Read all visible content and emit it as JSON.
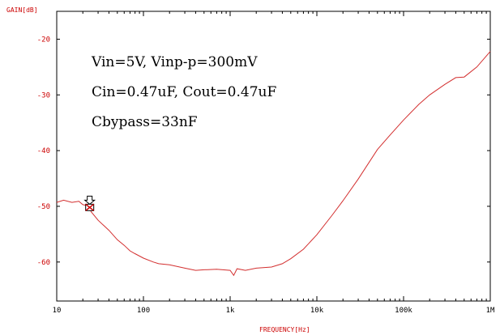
{
  "chart_data": {
    "type": "line",
    "title": "",
    "xlabel": "FREQUENCY[Hz]",
    "ylabel": "GAIN[dB]",
    "x_scale": "log",
    "xlim": [
      10,
      1000000
    ],
    "ylim": [
      -67,
      -15
    ],
    "x_ticks": [
      10,
      100,
      1000,
      10000,
      100000,
      1000000
    ],
    "x_tick_labels": [
      "10",
      "100",
      "1k",
      "10k",
      "100k",
      "1M"
    ],
    "y_ticks": [
      -20,
      -30,
      -40,
      -50,
      -60
    ],
    "y_tick_labels": [
      "-20",
      "-30",
      "-40",
      "-50",
      "-60"
    ],
    "grid": false,
    "series": [
      {
        "color": "#d32f2f",
        "x": [
          10,
          12,
          15,
          18,
          20,
          23,
          25,
          30,
          40,
          50,
          60,
          70,
          80,
          100,
          130,
          150,
          200,
          300,
          400,
          500,
          700,
          1000,
          1100,
          1200,
          1500,
          2000,
          3000,
          4000,
          5000,
          7000,
          10000,
          15000,
          20000,
          30000,
          50000,
          70000,
          100000,
          150000,
          200000,
          300000,
          400000,
          500000,
          700000,
          1000000
        ],
        "values": [
          -49.3,
          -48.9,
          -49.3,
          -49.1,
          -49.7,
          -49.9,
          -51.0,
          -52.5,
          -54.3,
          -56.0,
          -57.0,
          -58.0,
          -58.5,
          -59.3,
          -60.0,
          -60.3,
          -60.5,
          -61.1,
          -61.5,
          -61.4,
          -61.3,
          -61.5,
          -62.4,
          -61.2,
          -61.5,
          -61.1,
          -60.9,
          -60.3,
          -59.4,
          -57.7,
          -55.1,
          -51.6,
          -49.0,
          -45.1,
          -39.8,
          -37.2,
          -34.5,
          -31.7,
          -30.0,
          -28.1,
          -26.9,
          -26.8,
          -25.0,
          -22.2
        ]
      }
    ],
    "marker": {
      "x": 24,
      "y": -50.2
    },
    "annotations": [
      "Vin=5V, Vinp-p=300mV",
      "Cin=0.47uF, Cout=0.47uF",
      "Cbypass=33nF"
    ]
  }
}
